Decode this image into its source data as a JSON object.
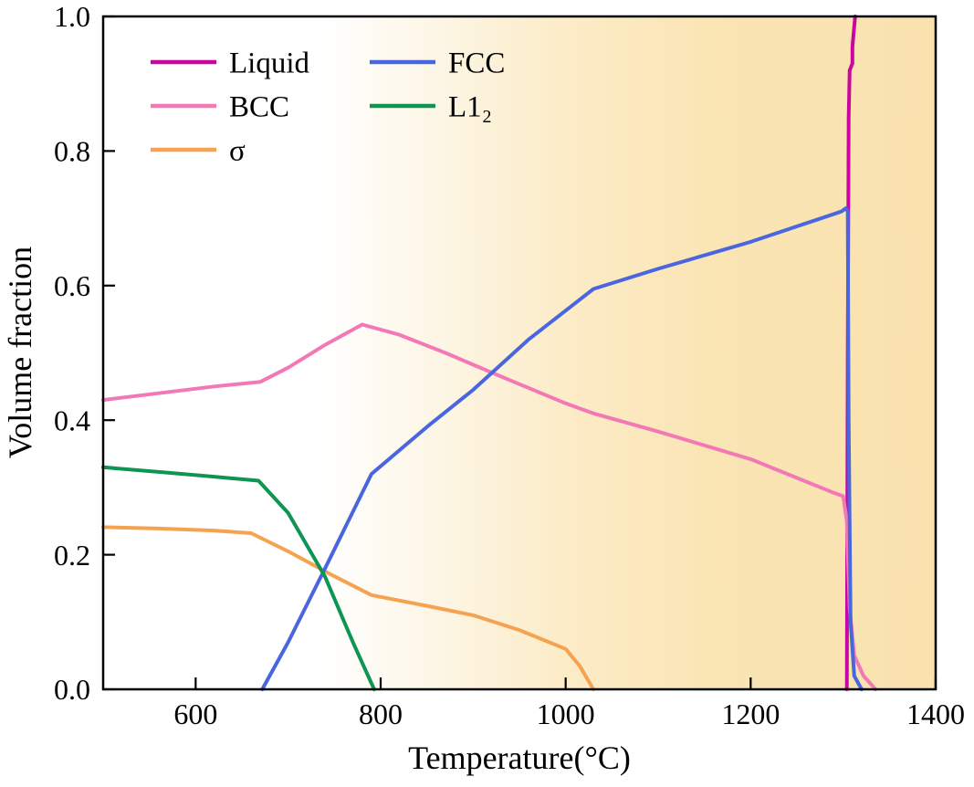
{
  "chart_data": {
    "type": "line",
    "title": "",
    "xlabel": "Temperature(°C)",
    "ylabel": "Volume fraction",
    "xlim": [
      500,
      1400
    ],
    "ylim": [
      0.0,
      1.0
    ],
    "xticks": [
      600,
      800,
      1000,
      1200,
      1400
    ],
    "yticks": [
      0.0,
      0.2,
      0.4,
      0.6,
      0.8,
      1.0
    ],
    "grid": false,
    "axis_color": "#000000",
    "legend": {
      "position": "top-left",
      "columns": 2,
      "order": [
        "Liquid",
        "FCC",
        "BCC",
        "L1₂",
        "σ"
      ]
    },
    "background": {
      "type": "horizontal-gradient",
      "stops": [
        {
          "offset": "0%",
          "color": "#ffffff"
        },
        {
          "offset": "26%",
          "color": "#ffffff"
        },
        {
          "offset": "40%",
          "color": "#fdf6e6"
        },
        {
          "offset": "55%",
          "color": "#fcecc8"
        },
        {
          "offset": "72%",
          "color": "#fae5b5"
        },
        {
          "offset": "100%",
          "color": "#f9e2ae"
        }
      ]
    },
    "series": [
      {
        "name": "Liquid",
        "color": "#C9079F",
        "points": [
          [
            1304,
            0.0
          ],
          [
            1305,
            0.5
          ],
          [
            1306,
            0.85
          ],
          [
            1307,
            0.92
          ],
          [
            1310,
            0.93
          ],
          [
            1310,
            0.955
          ],
          [
            1313,
            1.0
          ]
        ]
      },
      {
        "name": "BCC",
        "color": "#F279B6",
        "points": [
          [
            500,
            0.43
          ],
          [
            560,
            0.44
          ],
          [
            620,
            0.45
          ],
          [
            670,
            0.457
          ],
          [
            700,
            0.478
          ],
          [
            740,
            0.512
          ],
          [
            780,
            0.542
          ],
          [
            820,
            0.527
          ],
          [
            870,
            0.5
          ],
          [
            930,
            0.465
          ],
          [
            1000,
            0.425
          ],
          [
            1030,
            0.41
          ],
          [
            1100,
            0.383
          ],
          [
            1200,
            0.342
          ],
          [
            1290,
            0.292
          ],
          [
            1300,
            0.287
          ],
          [
            1304,
            0.25
          ],
          [
            1307,
            0.12
          ],
          [
            1312,
            0.05
          ],
          [
            1322,
            0.02
          ],
          [
            1335,
            0.0
          ]
        ]
      },
      {
        "name": "σ",
        "color": "#F5A351",
        "points": [
          [
            500,
            0.241
          ],
          [
            560,
            0.239
          ],
          [
            620,
            0.236
          ],
          [
            660,
            0.232
          ],
          [
            700,
            0.205
          ],
          [
            750,
            0.168
          ],
          [
            790,
            0.14
          ],
          [
            850,
            0.124
          ],
          [
            900,
            0.11
          ],
          [
            950,
            0.088
          ],
          [
            1000,
            0.06
          ],
          [
            1015,
            0.035
          ],
          [
            1030,
            0.0
          ]
        ]
      },
      {
        "name": "FCC",
        "color": "#4A66DF",
        "points": [
          [
            672,
            0.0
          ],
          [
            700,
            0.07
          ],
          [
            740,
            0.18
          ],
          [
            790,
            0.32
          ],
          [
            850,
            0.39
          ],
          [
            900,
            0.445
          ],
          [
            960,
            0.52
          ],
          [
            1030,
            0.595
          ],
          [
            1100,
            0.625
          ],
          [
            1200,
            0.665
          ],
          [
            1298,
            0.71
          ],
          [
            1303,
            0.715
          ],
          [
            1305,
            0.71
          ],
          [
            1306,
            0.4
          ],
          [
            1308,
            0.1
          ],
          [
            1312,
            0.02
          ],
          [
            1320,
            0.0
          ]
        ]
      },
      {
        "name": "L1₂",
        "color": "#0E9553",
        "points": [
          [
            500,
            0.33
          ],
          [
            560,
            0.323
          ],
          [
            620,
            0.316
          ],
          [
            668,
            0.31
          ],
          [
            700,
            0.262
          ],
          [
            740,
            0.167
          ],
          [
            770,
            0.07
          ],
          [
            793,
            0.0
          ]
        ]
      }
    ]
  }
}
